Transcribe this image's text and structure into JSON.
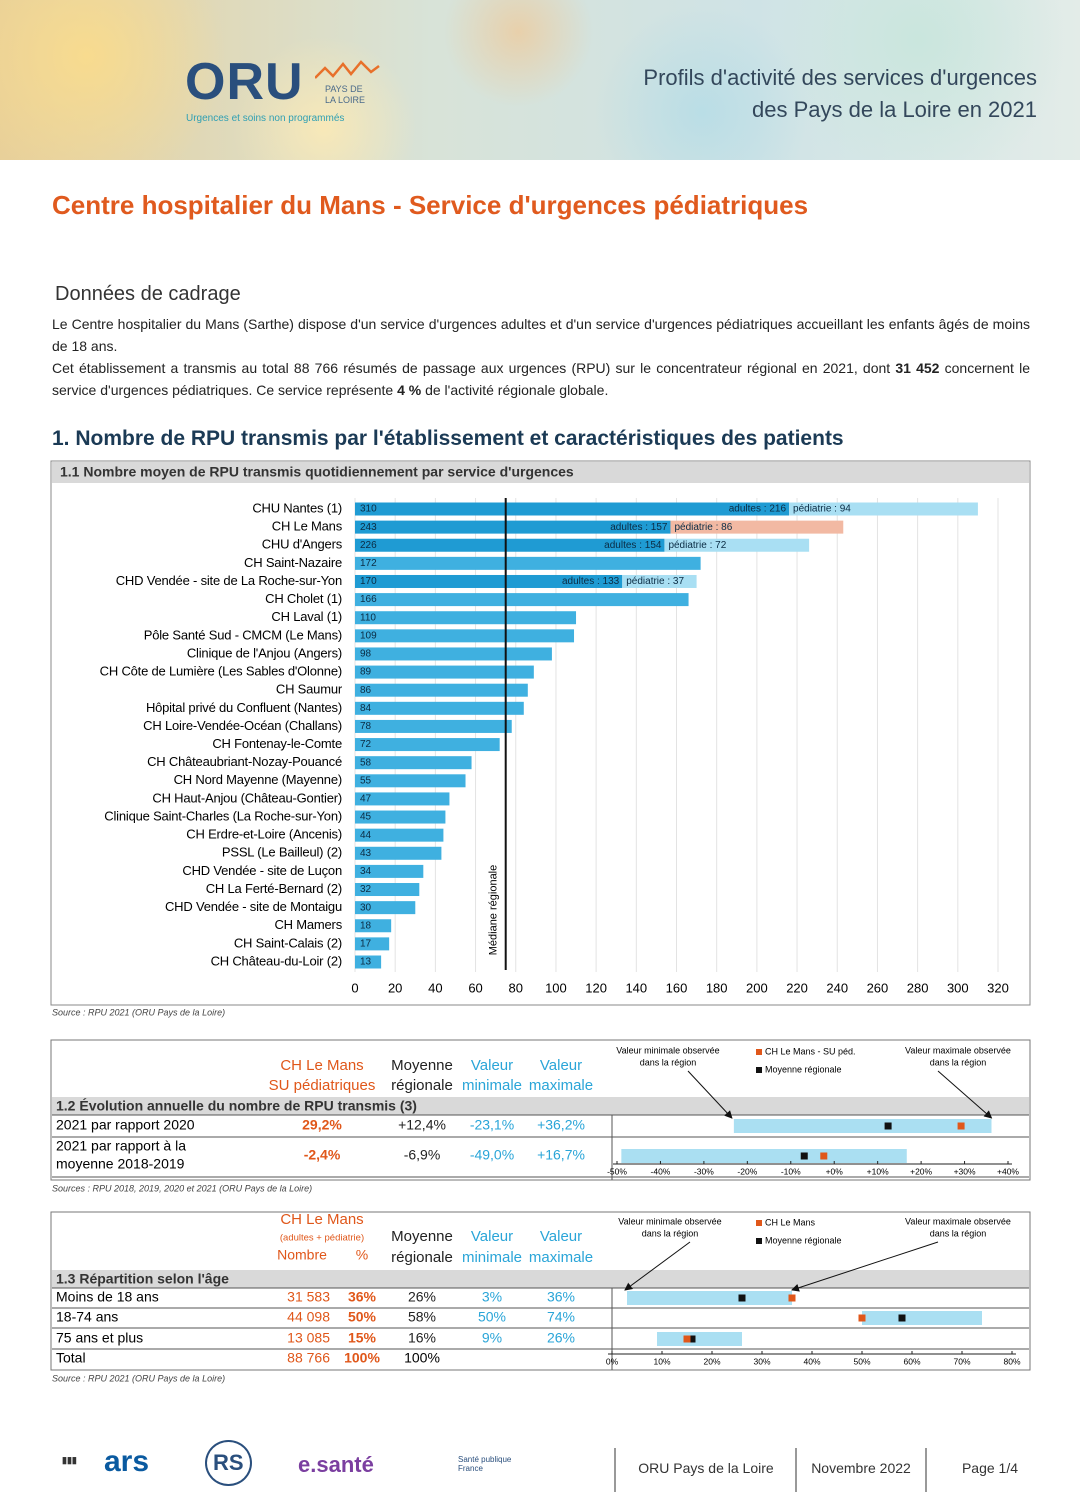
{
  "header": {
    "logo": "ORU",
    "logo_sub": [
      "PAYS DE",
      "LA LOIRE"
    ],
    "tagline": "Urgences et soins non programmés",
    "title_lines": [
      "Profils d'activité des services d'urgences",
      "des Pays de la Loire en 2021"
    ]
  },
  "page_title": "Centre hospitalier du Mans - Service d'urgences pédiatriques",
  "intro": {
    "heading": "Données de cadrage",
    "paragraphs": [
      [
        {
          "text": "Le Centre hospitalier du Mans (Sarthe) dispose d'un service d'urgences adultes et d'un service d'urgences pédiatriques accueillant les enfants âgés de moins de 18 ans."
        }
      ],
      [
        {
          "text": "Cet établissement a transmis au total 88 766 résumés de passage aux urgences (RPU) sur le concentrateur régional en 2021, dont "
        },
        {
          "text": "31 452",
          "bold": true
        },
        {
          "text": " concernent le service d'urgences pédiatriques. Ce service représente "
        },
        {
          "text": "4 %",
          "bold": true
        },
        {
          "text": " de l'activité régionale globale."
        }
      ]
    ]
  },
  "section1_heading": "1. Nombre de RPU transmis par l'établissement et caractéristiques des patients",
  "chart_data": {
    "type": "bar",
    "orientation": "horizontal",
    "title": "1.1 Nombre moyen de RPU transmis quotidiennement par service d'urgences",
    "categories": [
      "CHU Nantes (1)",
      "CH Le Mans",
      "CHU d'Angers",
      "CH Saint-Nazaire",
      "CHD Vendée - site de La Roche-sur-Yon",
      "CH Cholet (1)",
      "CH Laval (1)",
      "Pôle Santé Sud - CMCM (Le Mans)",
      "Clinique de l'Anjou (Angers)",
      "CH Côte de Lumière (Les Sables d'Olonne)",
      "CH Saumur",
      "Hôpital privé du Confluent (Nantes)",
      "CH Loire-Vendée-Océan (Challans)",
      "CH Fontenay-le-Comte",
      "CH Châteaubriant-Nozay-Pouancé",
      "CH Nord Mayenne (Mayenne)",
      "CH Haut-Anjou (Château-Gontier)",
      "Clinique Saint-Charles (La Roche-sur-Yon)",
      "CH Erdre-et-Loire (Ancenis)",
      "PSSL (Le Bailleul) (2)",
      "CHD Vendée - site de Luçon",
      "CH La Ferté-Bernard (2)",
      "CHD Vendée - site de Montaigu",
      "CH Mamers",
      "CH Saint-Calais (2)",
      "CH Château-du-Loir (2)"
    ],
    "values": [
      310,
      243,
      226,
      172,
      170,
      166,
      110,
      109,
      98,
      89,
      86,
      84,
      78,
      72,
      58,
      55,
      47,
      45,
      44,
      43,
      34,
      32,
      30,
      18,
      17,
      13
    ],
    "color": "#3fb0e0",
    "series": [
      {
        "color": "#1f9bd3",
        "values": [
          216,
          157,
          154,
          null,
          133,
          null,
          null,
          null,
          null,
          null,
          null,
          null,
          null,
          null,
          null,
          null,
          null,
          null,
          null,
          null,
          null,
          null,
          null,
          null,
          null,
          null
        ],
        "value_labels": [
          "adultes : 216",
          "adultes : 157",
          "adultes : 154",
          null,
          "adultes : 133",
          null,
          null,
          null,
          null,
          null,
          null,
          null,
          null,
          null,
          null,
          null,
          null,
          null,
          null,
          null,
          null,
          null,
          null,
          null,
          null,
          null
        ]
      },
      {
        "color": "#a9dff3",
        "values": [
          94,
          86,
          72,
          null,
          37,
          null,
          null,
          null,
          null,
          null,
          null,
          null,
          null,
          null,
          null,
          null,
          null,
          null,
          null,
          null,
          null,
          null,
          null,
          null,
          null,
          null
        ],
        "value_labels": [
          "pédiatrie : 94",
          "pédiatrie : 86",
          "pédiatrie : 72",
          null,
          "pédiatrie : 37",
          null,
          null,
          null,
          null,
          null,
          null,
          null,
          null,
          null,
          null,
          null,
          null,
          null,
          null,
          null,
          null,
          null,
          null,
          null,
          null,
          null
        ]
      }
    ],
    "highlight": {
      "index": 1,
      "color": "#f2b9a3"
    },
    "median": {
      "value": 75,
      "label": "Médiane régionale"
    },
    "xlim": [
      0,
      320
    ],
    "xticks": [
      0,
      20,
      40,
      60,
      80,
      100,
      120,
      140,
      160,
      180,
      200,
      220,
      240,
      260,
      280,
      300,
      320
    ],
    "grid": true,
    "source": "Source : RPU 2021 (ORU Pays de la Loire)"
  },
  "evolution": {
    "type": "range-dot",
    "title": "1.2 Évolution annuelle du nombre de RPU transmis (3)",
    "columns": [
      [
        "CH Le Mans",
        "SU pédiatriques"
      ],
      [
        "Moyenne",
        "régionale"
      ],
      [
        "Valeur",
        "minimale"
      ],
      [
        "Valeur",
        "maximale"
      ]
    ],
    "legend": {
      "min": [
        "Valeur minimale observée",
        "dans la région"
      ],
      "self": "CH Le Mans - SU péd.",
      "mean": "Moyenne régionale",
      "max": [
        "Valeur maximale observée",
        "dans la région"
      ]
    },
    "colors": {
      "self": "#e0571a",
      "mean": "#111111",
      "range": "#aadff2",
      "extreme": "#2aa5d8"
    },
    "rows": [
      {
        "label": [
          "2021 par rapport 2020"
        ],
        "values": [
          29.2,
          12.4,
          -23.1,
          36.2
        ],
        "value_labels": [
          "29,2%",
          "+12,4%",
          "-23,1%",
          "+36,2%"
        ]
      },
      {
        "label": [
          "2021 par rapport à la",
          "moyenne 2018-2019"
        ],
        "values": [
          -2.4,
          -6.9,
          -49.0,
          16.7
        ],
        "value_labels": [
          "-2,4%",
          "-6,9%",
          "-49,0%",
          "+16,7%"
        ]
      }
    ],
    "xlim": [
      -50,
      40
    ],
    "xticks": [
      {
        "value": -50,
        "label": "-50%"
      },
      {
        "value": -40,
        "label": "-40%"
      },
      {
        "value": -30,
        "label": "-30%"
      },
      {
        "value": -20,
        "label": "-20%"
      },
      {
        "value": -10,
        "label": "-10%"
      },
      {
        "value": 0,
        "label": "+0%"
      },
      {
        "value": 10,
        "label": "+10%"
      },
      {
        "value": 20,
        "label": "+20%"
      },
      {
        "value": 30,
        "label": "+30%"
      },
      {
        "value": 40,
        "label": "+40%"
      }
    ],
    "source": "Sources : RPU 2018, 2019, 2020 et 2021 (ORU Pays de la Loire)"
  },
  "age": {
    "type": "range-dot",
    "title": "1.3 Répartition selon l'âge",
    "header": {
      "group": "CH Le Mans",
      "group_sub": "(adultes + pédiatrie)",
      "count": "Nombre",
      "pct": "%",
      "mean": [
        "Moyenne",
        "régionale"
      ],
      "min": [
        "Valeur",
        "minimale"
      ],
      "max": [
        "Valeur",
        "maximale"
      ]
    },
    "legend": {
      "min": [
        "Valeur minimale observée",
        "dans la région"
      ],
      "self": "CH Le Mans",
      "mean": "Moyenne régionale",
      "max": [
        "Valeur maximale observée",
        "dans la région"
      ]
    },
    "colors": {
      "self": "#e0571a",
      "mean": "#111111",
      "range": "#aadff2",
      "extreme": "#2aa5d8"
    },
    "rows": [
      {
        "label": [
          "Moins de 18 ans"
        ],
        "count": "31 583",
        "values": [
          36,
          26,
          3,
          36
        ],
        "value_labels": [
          "36%",
          "26%",
          "3%",
          "36%"
        ]
      },
      {
        "label": [
          "18-74 ans"
        ],
        "count": "44 098",
        "values": [
          50,
          58,
          50,
          74
        ],
        "value_labels": [
          "50%",
          "58%",
          "50%",
          "74%"
        ]
      },
      {
        "label": [
          "75 ans et plus"
        ],
        "count": "13 085",
        "values": [
          15,
          16,
          9,
          26
        ],
        "value_labels": [
          "15%",
          "16%",
          "9%",
          "26%"
        ]
      }
    ],
    "total": {
      "label": "Total",
      "count": "88 766",
      "pct": "100%",
      "mean": "100%"
    },
    "xlim": [
      0,
      80
    ],
    "xticks": [
      {
        "value": 0,
        "label": "0%"
      },
      {
        "value": 10,
        "label": "10%"
      },
      {
        "value": 20,
        "label": "20%"
      },
      {
        "value": 30,
        "label": "30%"
      },
      {
        "value": 40,
        "label": "40%"
      },
      {
        "value": 50,
        "label": "50%"
      },
      {
        "value": 60,
        "label": "60%"
      },
      {
        "value": 70,
        "label": "70%"
      },
      {
        "value": 80,
        "label": "80%"
      }
    ],
    "source": "Source : RPU 2021 (ORU Pays de la Loire)"
  },
  "footer": {
    "logos": [
      "ars",
      "RS",
      "e.santé",
      "Santé publique France"
    ],
    "org": "ORU Pays de la Loire",
    "date": "Novembre 2022",
    "page": "Page 1/4"
  }
}
